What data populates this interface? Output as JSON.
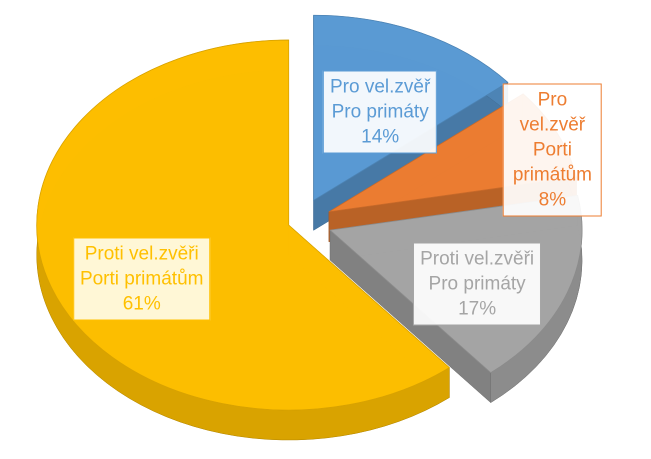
{
  "chart_data": {
    "type": "pie",
    "categories": [
      "Pro vel.zvěř\nPro primáty",
      "Pro vel.zvěř\nPorti primátům",
      "Proti vel.zvěři\nPro primáty",
      "Proti vel.zvěři\nPorti primátům"
    ],
    "values": [
      14,
      8,
      17,
      61
    ],
    "value_labels": [
      "14%",
      "8%",
      "17%",
      "61%"
    ],
    "colors": [
      "#5b9bd5",
      "#ed7d31",
      "#a5a5a5",
      "#ffc000"
    ],
    "exploded": true,
    "three_d": true
  }
}
